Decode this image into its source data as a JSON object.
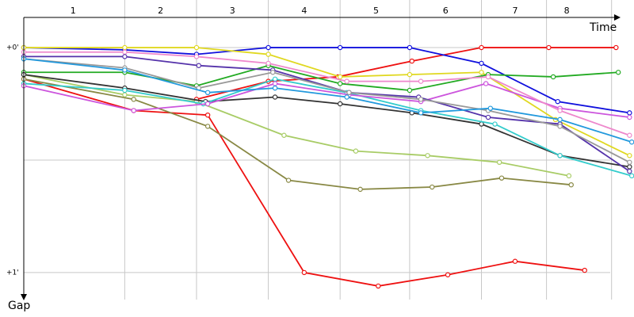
{
  "chart_data": {
    "type": "line",
    "x_label": "Time",
    "y_label": "Gap",
    "xlim": [
      0,
      2.72
    ],
    "ylim": [
      -0.134,
      1.18
    ],
    "y_inverted": true,
    "grid": true,
    "xticks": [
      {
        "value": 0.22,
        "label": "1"
      },
      {
        "value": 0.61,
        "label": "2"
      },
      {
        "value": 0.93,
        "label": "3"
      },
      {
        "value": 1.25,
        "label": "4"
      },
      {
        "value": 1.57,
        "label": "5"
      },
      {
        "value": 1.88,
        "label": "6"
      },
      {
        "value": 2.19,
        "label": "7"
      },
      {
        "value": 2.42,
        "label": "8"
      }
    ],
    "lap_lines": [
      0.45,
      0.77,
      1.09,
      1.41,
      1.72,
      2.04,
      2.33,
      2.62
    ],
    "yticks": [
      {
        "value": 0,
        "label": "+0'"
      },
      {
        "value": 0.5,
        "label": null
      },
      {
        "value": 1,
        "label": "+1'"
      }
    ],
    "series": [
      {
        "color": "#ee1111",
        "x": [
          0,
          0.49,
          0.82,
          1.25,
          1.58,
          1.89,
          2.19,
          2.5
        ],
        "values": [
          0.14,
          0.28,
          0.3,
          1.0,
          1.06,
          1.01,
          0.95,
          0.99
        ]
      },
      {
        "color": "#ee1111",
        "x": [
          0.77,
          1.09,
          1.4,
          1.73,
          2.04,
          2.34,
          2.64
        ],
        "values": [
          0.23,
          0.15,
          0.13,
          0.06,
          0,
          0,
          0
        ]
      },
      {
        "color": "#1010dd",
        "x": [
          0,
          0.45,
          0.77,
          1.09,
          1.41,
          1.72,
          2.04,
          2.38,
          2.7
        ],
        "values": [
          0,
          0.01,
          0.03,
          0,
          0,
          0,
          0.07,
          0.24,
          0.29
        ]
      },
      {
        "color": "#e0d820",
        "x": [
          0,
          0.45,
          0.77,
          1.09,
          1.41,
          1.72,
          2.04,
          2.37,
          2.7
        ],
        "values": [
          0,
          0,
          0,
          0.03,
          0.13,
          0.12,
          0.11,
          0.32,
          0.48
        ]
      },
      {
        "color": "#22aa22",
        "x": [
          0,
          0.45,
          0.77,
          1.09,
          1.41,
          1.72,
          2.07,
          2.36,
          2.65
        ],
        "values": [
          0.11,
          0.11,
          0.17,
          0.08,
          0.16,
          0.19,
          0.12,
          0.13,
          0.11
        ]
      },
      {
        "color": "#888844",
        "x": [
          0,
          0.49,
          0.82,
          1.18,
          1.5,
          1.82,
          2.13,
          2.44
        ],
        "values": [
          0.14,
          0.23,
          0.35,
          0.59,
          0.63,
          0.62,
          0.58,
          0.61
        ]
      },
      {
        "color": "#a8cc66",
        "x": [
          0,
          0.45,
          0.77,
          1.16,
          1.48,
          1.8,
          2.12,
          2.43
        ],
        "values": [
          0.12,
          0.21,
          0.24,
          0.39,
          0.46,
          0.48,
          0.51,
          0.57
        ]
      },
      {
        "color": "#333333",
        "x": [
          0,
          0.45,
          0.81,
          1.12,
          1.41,
          1.73,
          2.04,
          2.39,
          2.7
        ],
        "values": [
          0.12,
          0.18,
          0.24,
          0.22,
          0.25,
          0.29,
          0.34,
          0.48,
          0.53
        ]
      },
      {
        "color": "#33cccc",
        "x": [
          0,
          0.45,
          0.8,
          1.12,
          1.44,
          1.77,
          2.1,
          2.39,
          2.71
        ],
        "values": [
          0.16,
          0.19,
          0.25,
          0.14,
          0.2,
          0.28,
          0.34,
          0.48,
          0.57
        ]
      },
      {
        "color": "#cc55dd",
        "x": [
          0,
          0.49,
          0.82,
          1.12,
          1.45,
          1.77,
          2.06,
          2.39,
          2.7
        ],
        "values": [
          0.17,
          0.28,
          0.25,
          0.16,
          0.21,
          0.24,
          0.16,
          0.27,
          0.31
        ]
      },
      {
        "color": "#ee88cc",
        "x": [
          0,
          0.45,
          0.77,
          1.09,
          1.44,
          1.77,
          2.07,
          2.39,
          2.7
        ],
        "values": [
          0.02,
          0.02,
          0.04,
          0.07,
          0.15,
          0.15,
          0.13,
          0.28,
          0.39
        ]
      },
      {
        "color": "#5533aa",
        "x": [
          0,
          0.45,
          0.78,
          1.11,
          1.45,
          1.76,
          2.07,
          2.39,
          2.7
        ],
        "values": [
          0.04,
          0.04,
          0.08,
          0.1,
          0.2,
          0.22,
          0.31,
          0.34,
          0.55
        ]
      },
      {
        "color": "#999999",
        "x": [
          0,
          0.45,
          0.78,
          1.11,
          1.45,
          1.77,
          2.07,
          2.39,
          2.7
        ],
        "values": [
          0.05,
          0.09,
          0.18,
          0.11,
          0.2,
          0.23,
          0.28,
          0.35,
          0.51
        ]
      },
      {
        "color": "#2299dd",
        "x": [
          0,
          0.45,
          0.82,
          1.12,
          1.44,
          1.77,
          2.08,
          2.39,
          2.71
        ],
        "values": [
          0.05,
          0.1,
          0.2,
          0.18,
          0.22,
          0.29,
          0.27,
          0.32,
          0.42
        ]
      }
    ]
  }
}
